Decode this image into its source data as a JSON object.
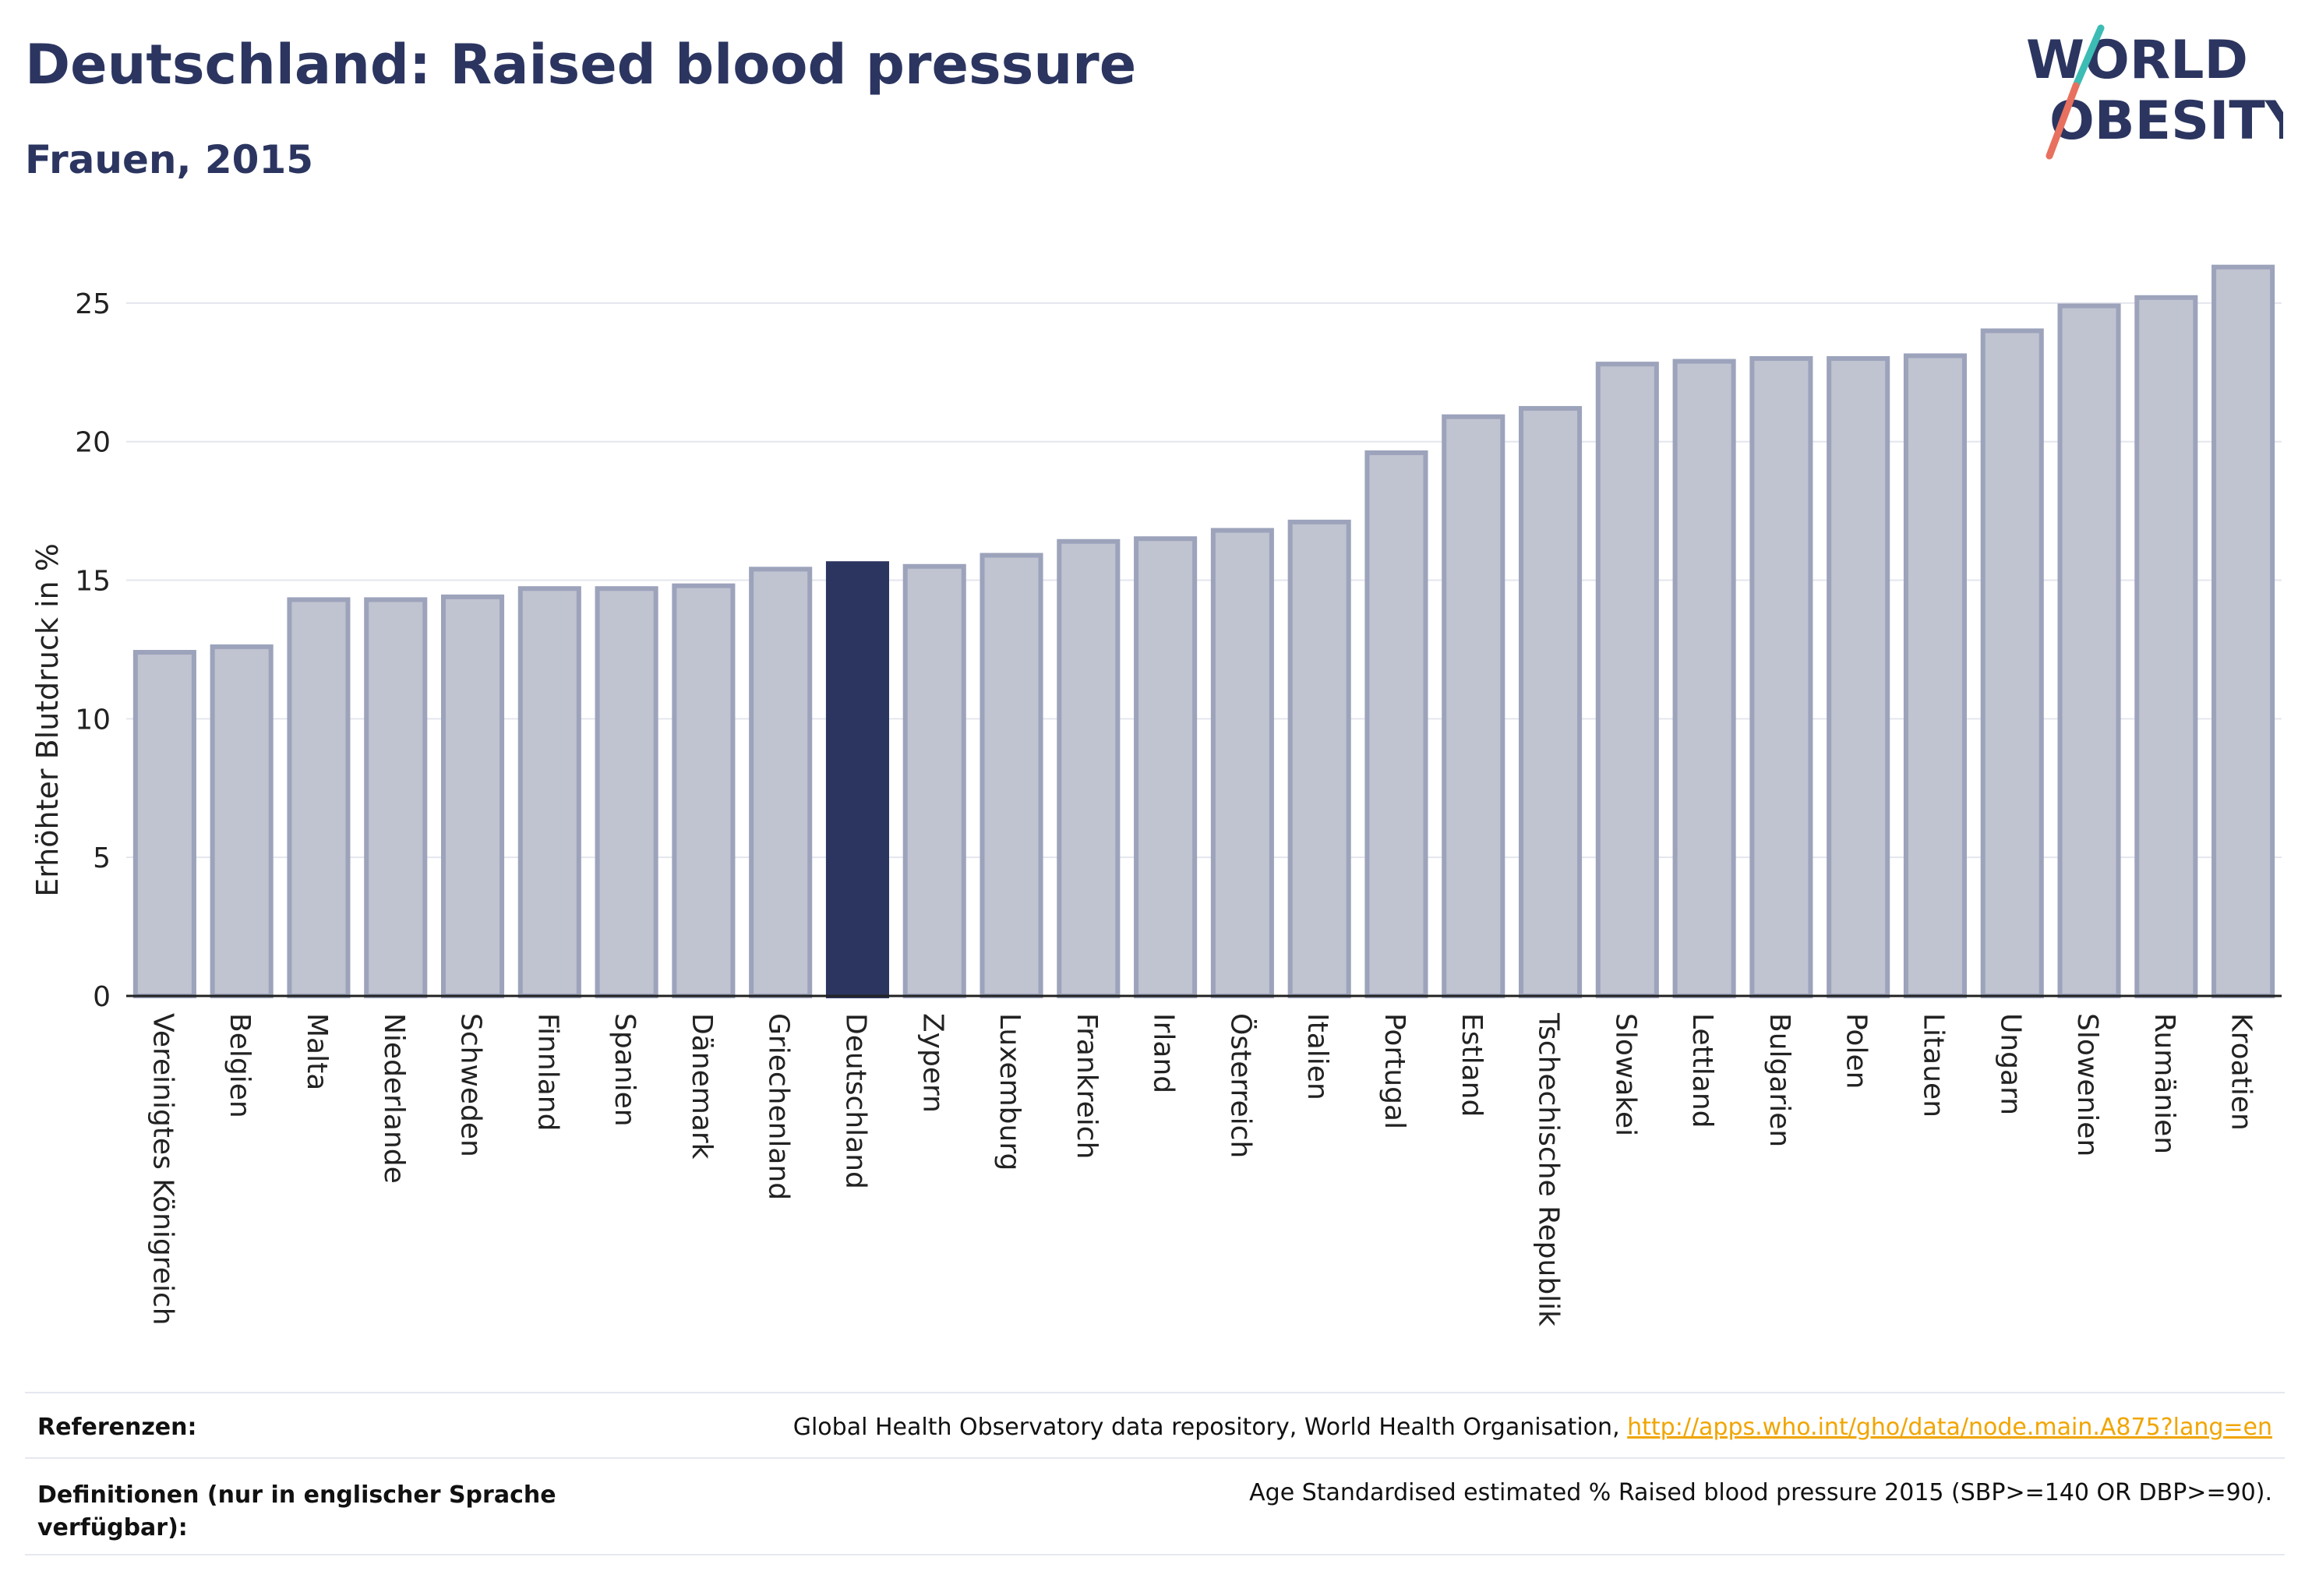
{
  "header": {
    "title": "Deutschland: Raised blood pressure",
    "subtitle": "Frauen, 2015"
  },
  "logo": {
    "line1": "WORLD",
    "line2": "OBESITY",
    "icon": "world-obesity-logo"
  },
  "colors": {
    "bar_default": "#c0c3d0",
    "bar_border": "#9ca3bb",
    "bar_highlight": "#2b3560",
    "accent_link": "#f0a500",
    "logo_teal": "#3cbcb4",
    "logo_coral": "#e8705f"
  },
  "chart_data": {
    "type": "bar",
    "ylabel": "Erhöhter Blutdruck in %",
    "ylim": [
      0,
      27.5
    ],
    "yticks": [
      0,
      5,
      10,
      15,
      20,
      25
    ],
    "grid": true,
    "highlight": "Deutschland",
    "categories": [
      "Vereinigtes Königreich",
      "Belgien",
      "Malta",
      "Niederlande",
      "Schweden",
      "Finnland",
      "Spanien",
      "Dänemark",
      "Griechenland",
      "Deutschland",
      "Zypern",
      "Luxemburg",
      "Frankreich",
      "Irland",
      "Österreich",
      "Italien",
      "Portugal",
      "Estland",
      "Tschechische Republik",
      "Slowakei",
      "Lettland",
      "Bulgarien",
      "Polen",
      "Litauen",
      "Ungarn",
      "Slowenien",
      "Rumänien",
      "Kroatien"
    ],
    "values": [
      12.4,
      12.6,
      14.3,
      14.3,
      14.4,
      14.7,
      14.7,
      14.8,
      15.4,
      15.6,
      15.5,
      15.9,
      16.4,
      16.5,
      16.8,
      17.1,
      19.6,
      20.9,
      21.2,
      22.8,
      22.9,
      23.0,
      23.0,
      23.1,
      24.0,
      24.9,
      25.2,
      26.3
    ]
  },
  "footer": {
    "references_label": "Referenzen:",
    "references_text": "Global Health Observatory data repository, World Health Organisation, ",
    "references_link": "http://apps.who.int/gho/data/node.main.A875?lang=en",
    "definitions_label_1": "Definitionen (nur in englischer Sprache",
    "definitions_label_2": "verfügbar):",
    "definitions_text": "Age Standardised estimated % Raised blood pressure 2015 (SBP>=140 OR DBP>=90)."
  }
}
